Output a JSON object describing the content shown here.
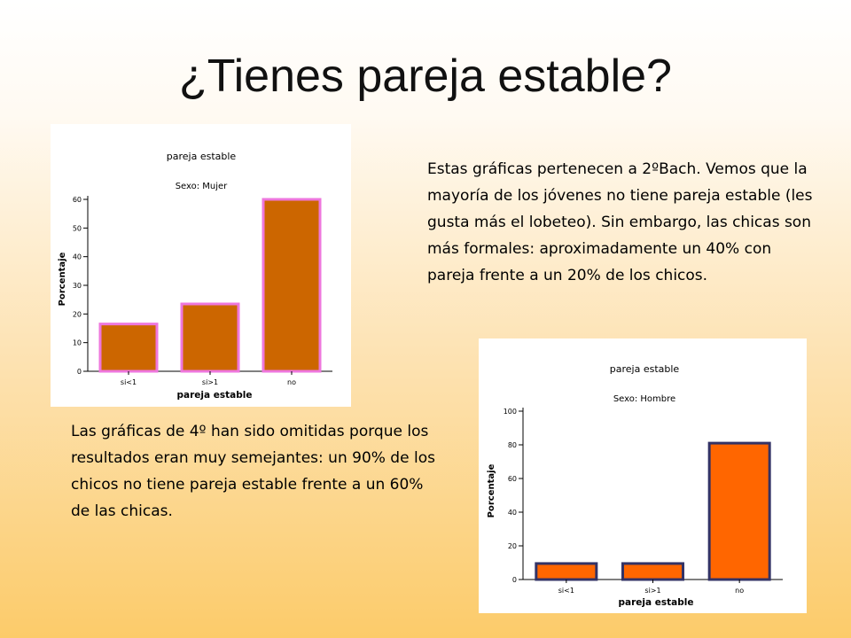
{
  "slide": {
    "title": "¿Tienes pareja estable?",
    "paragraph_1": "Estas gráficas pertenecen a 2ºBach. Vemos que la mayoría de los jóvenes no tiene pareja estable (les gusta más el lobeteo). Sin embargo, las chicas son más formales: aproximadamente un 40% con pareja frente a un 20% de los chicos.",
    "paragraph_2": "Las gráficas de 4º han sido omitidas porque los resultados eran muy semejantes: un 90% de los chicos no tiene pareja estable frente a un 60% de las chicas."
  },
  "chart_data": [
    {
      "type": "bar",
      "title": "pareja estable",
      "subtitle": "Sexo: Mujer",
      "xlabel": "pareja estable",
      "ylabel": "Porcentaje",
      "categories": [
        "si<1",
        "si>1",
        "no"
      ],
      "values": [
        16.5,
        23.5,
        60
      ],
      "ylim": [
        0,
        60
      ],
      "yticks": [
        0,
        10,
        20,
        30,
        40,
        50,
        60
      ],
      "bar_color": "#cc6600",
      "bar_border": "#ee77dd",
      "grid": false
    },
    {
      "type": "bar",
      "title": "pareja estable",
      "subtitle": "Sexo: Hombre",
      "xlabel": "pareja estable",
      "ylabel": "Porcentaje",
      "categories": [
        "si<1",
        "si>1",
        "no"
      ],
      "values": [
        9.5,
        9.5,
        81
      ],
      "ylim": [
        0,
        100
      ],
      "yticks": [
        0,
        20,
        40,
        60,
        80,
        100
      ],
      "bar_color": "#ff6600",
      "bar_border": "#333366",
      "grid": false
    }
  ]
}
